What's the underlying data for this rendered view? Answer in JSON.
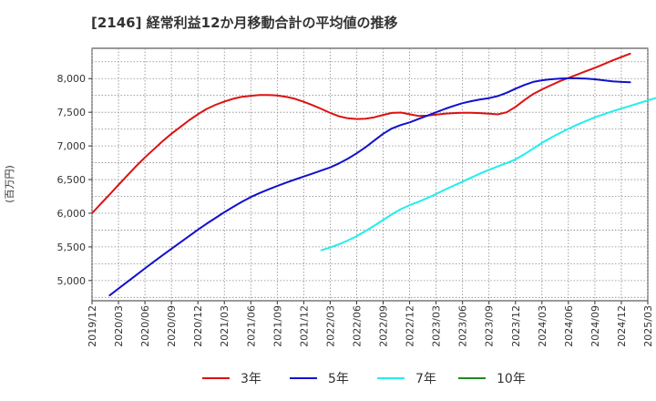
{
  "chart_data": {
    "type": "line",
    "title": "[2146]  経常利益12か月移動合計の平均値の推移",
    "ylabel": "(百万円)",
    "xlabel": "",
    "ylim": [
      4700,
      8450
    ],
    "yticks": [
      5000,
      5500,
      6000,
      6500,
      7000,
      7500,
      8000
    ],
    "ytick_labels": [
      "5,000",
      "5,500",
      "6,000",
      "6,500",
      "7,000",
      "7,500",
      "8,000"
    ],
    "x_start": "2019-12",
    "x_end": "2025-03",
    "x_ticks": [
      "2019/12",
      "2020/03",
      "2020/06",
      "2020/09",
      "2020/12",
      "2021/03",
      "2021/06",
      "2021/09",
      "2021/12",
      "2022/03",
      "2022/06",
      "2022/09",
      "2022/12",
      "2023/03",
      "2023/06",
      "2023/09",
      "2023/12",
      "2024/03",
      "2024/06",
      "2024/09",
      "2024/12",
      "2025/03"
    ],
    "grid": true,
    "legend_position": "bottom",
    "series": [
      {
        "name": "3年",
        "color": "#dd1111",
        "start": "2019-12",
        "values": [
          6000,
          6140,
          6280,
          6420,
          6560,
          6700,
          6830,
          6950,
          7070,
          7180,
          7280,
          7380,
          7470,
          7550,
          7610,
          7660,
          7700,
          7730,
          7745,
          7755,
          7757,
          7750,
          7730,
          7700,
          7655,
          7605,
          7550,
          7490,
          7440,
          7410,
          7400,
          7405,
          7425,
          7460,
          7490,
          7495,
          7470,
          7445,
          7450,
          7465,
          7480,
          7488,
          7492,
          7492,
          7488,
          7478,
          7468,
          7500,
          7580,
          7680,
          7770,
          7840,
          7900,
          7960,
          8010,
          8060,
          8110,
          8160,
          8215,
          8270,
          8320,
          8370
        ]
      },
      {
        "name": "5年",
        "color": "#1111cc",
        "start": "2020-02",
        "values": [
          4780,
          4880,
          4980,
          5080,
          5180,
          5280,
          5375,
          5470,
          5565,
          5660,
          5755,
          5845,
          5930,
          6015,
          6095,
          6170,
          6240,
          6300,
          6355,
          6405,
          6455,
          6500,
          6545,
          6590,
          6635,
          6680,
          6740,
          6810,
          6890,
          6980,
          7080,
          7180,
          7260,
          7310,
          7350,
          7400,
          7450,
          7500,
          7550,
          7595,
          7635,
          7665,
          7690,
          7710,
          7740,
          7790,
          7850,
          7905,
          7950,
          7975,
          7990,
          8000,
          8005,
          8005,
          8000,
          7990,
          7975,
          7960,
          7950,
          7945
        ]
      },
      {
        "name": "7年",
        "color": "#22eeee",
        "start": "2022-02",
        "values": [
          5450,
          5490,
          5540,
          5595,
          5660,
          5735,
          5815,
          5900,
          5985,
          6060,
          6120,
          6170,
          6225,
          6285,
          6350,
          6410,
          6470,
          6530,
          6590,
          6645,
          6695,
          6745,
          6800,
          6875,
          6960,
          7045,
          7120,
          7190,
          7255,
          7315,
          7370,
          7425,
          7470,
          7515,
          7555,
          7595,
          7635,
          7675,
          7715
        ]
      },
      {
        "name": "10年",
        "color": "#228822",
        "start": "2019-12",
        "values": []
      }
    ]
  }
}
